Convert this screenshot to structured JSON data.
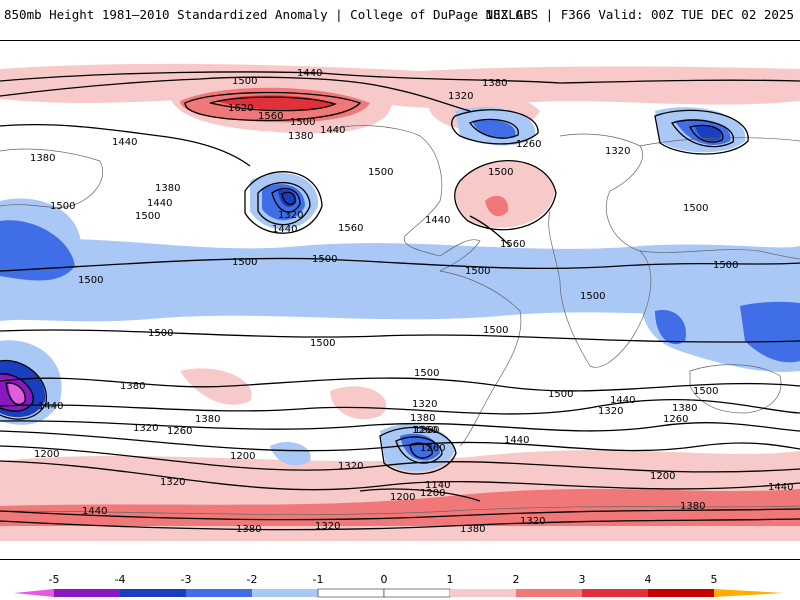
{
  "header": {
    "title": "850mb Height 1981–2010 Standardized Anomaly | College of DuPage NEXLAB",
    "run_info": "18Z GFS | F366 Valid: 00Z TUE DEC 02 2025"
  },
  "colors": {
    "neg5": "#e35ce0",
    "neg4": "#8a18c0",
    "neg3": "#1a3ec0",
    "neg2": "#3f6ee6",
    "neg1": "#a9c8f5",
    "neu": "#ffffff",
    "pos1": "#f7c9c9",
    "pos2": "#f07878",
    "pos3": "#e0303a",
    "pos4": "#c40000",
    "pos5": "#ffae00"
  },
  "colorbar": {
    "labels": [
      "-5",
      "-4",
      "-3",
      "-2",
      "-1",
      "0",
      "1",
      "2",
      "3",
      "4",
      "5"
    ]
  },
  "contour_labels": [
    "1440",
    "1500",
    "1620",
    "1560",
    "1500",
    "1440",
    "1380",
    "1380",
    "1320",
    "1260",
    "1320",
    "1500",
    "1440",
    "1380",
    "1380",
    "1440",
    "1500",
    "1500",
    "1500",
    "1320",
    "1440",
    "1560",
    "1500",
    "1500",
    "1440",
    "1500",
    "1500",
    "1560",
    "1500",
    "1500",
    "1500",
    "1500",
    "1500",
    "1500",
    "1380",
    "1320",
    "1260",
    "1200",
    "1440",
    "1380",
    "1320",
    "1320",
    "1260",
    "1200",
    "1500",
    "1440",
    "1380",
    "1260",
    "1140",
    "1200",
    "1260",
    "1320",
    "1380",
    "1440",
    "1500",
    "1320",
    "1380",
    "1260",
    "1200",
    "1440",
    "1380",
    "1320",
    "1380",
    "1320",
    "1200",
    "1440",
    "1500"
  ]
}
